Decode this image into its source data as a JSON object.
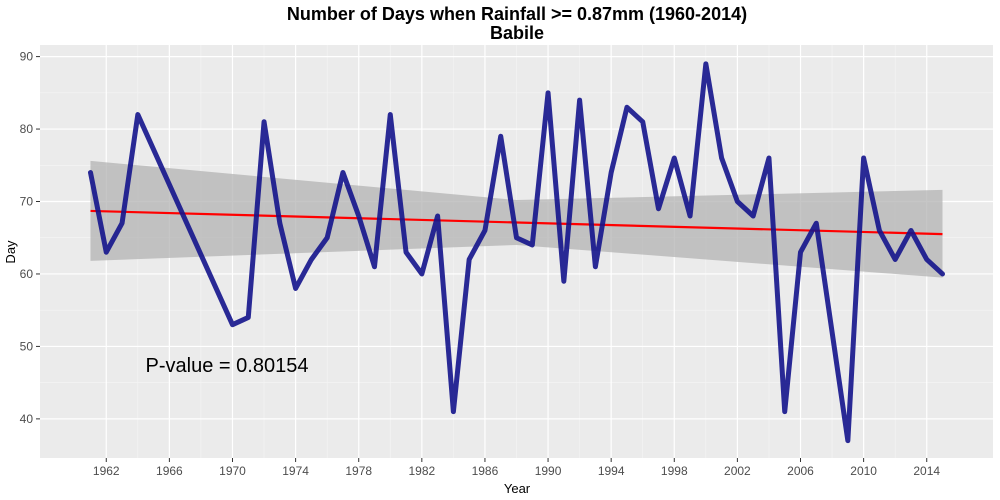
{
  "chart_data": {
    "type": "line",
    "title": "Number of Days when Rainfall >= 0.87mm (1960-2014)",
    "subtitle": "Babile",
    "xlabel": "Year",
    "ylabel": "Day",
    "xlim": [
      1957.8,
      2018.2
    ],
    "ylim": [
      34.6,
      91.6
    ],
    "x_ticks": [
      1962,
      1966,
      1970,
      1974,
      1978,
      1982,
      1986,
      1990,
      1994,
      1998,
      2002,
      2006,
      2010,
      2014
    ],
    "y_ticks": [
      40,
      50,
      60,
      70,
      80,
      90
    ],
    "grid": true,
    "series": [
      {
        "role": "observed",
        "color": "#14148c",
        "points": [
          [
            1961,
            74
          ],
          [
            1962,
            63
          ],
          [
            1963,
            67
          ],
          [
            1964,
            82
          ],
          [
            1970,
            53
          ],
          [
            1971,
            54
          ],
          [
            1972,
            81
          ],
          [
            1973,
            67
          ],
          [
            1974,
            58
          ],
          [
            1975,
            62
          ],
          [
            1976,
            65
          ],
          [
            1977,
            74
          ],
          [
            1978,
            68
          ],
          [
            1979,
            61
          ],
          [
            1980,
            82
          ],
          [
            1981,
            63
          ],
          [
            1982,
            60
          ],
          [
            1983,
            68
          ],
          [
            1984,
            41
          ],
          [
            1985,
            62
          ],
          [
            1986,
            66
          ],
          [
            1987,
            79
          ],
          [
            1988,
            65
          ],
          [
            1989,
            64
          ],
          [
            1990,
            85
          ],
          [
            1991,
            59
          ],
          [
            1992,
            84
          ],
          [
            1993,
            61
          ],
          [
            1994,
            74
          ],
          [
            1995,
            83
          ],
          [
            1996,
            81
          ],
          [
            1997,
            69
          ],
          [
            1998,
            76
          ],
          [
            1999,
            68
          ],
          [
            2000,
            89
          ],
          [
            2001,
            76
          ],
          [
            2002,
            70
          ],
          [
            2003,
            68
          ],
          [
            2004,
            76
          ],
          [
            2005,
            41
          ],
          [
            2006,
            63
          ],
          [
            2007,
            67
          ],
          [
            2009,
            37
          ],
          [
            2010,
            76
          ],
          [
            2011,
            66
          ],
          [
            2012,
            62
          ],
          [
            2013,
            66
          ],
          [
            2014,
            62
          ],
          [
            2015,
            60
          ]
        ]
      },
      {
        "role": "trend",
        "color": "#ff0000",
        "points": [
          [
            1961,
            68.7
          ],
          [
            2015,
            65.5
          ]
        ]
      }
    ],
    "confidence_band": {
      "color": "#b3b3b3",
      "x": [
        1961,
        1988,
        2015
      ],
      "lower": [
        61.8,
        64.0,
        59.5
      ],
      "upper": [
        75.6,
        70.2,
        71.6
      ]
    },
    "annotation": "P-value = 0.80154"
  }
}
